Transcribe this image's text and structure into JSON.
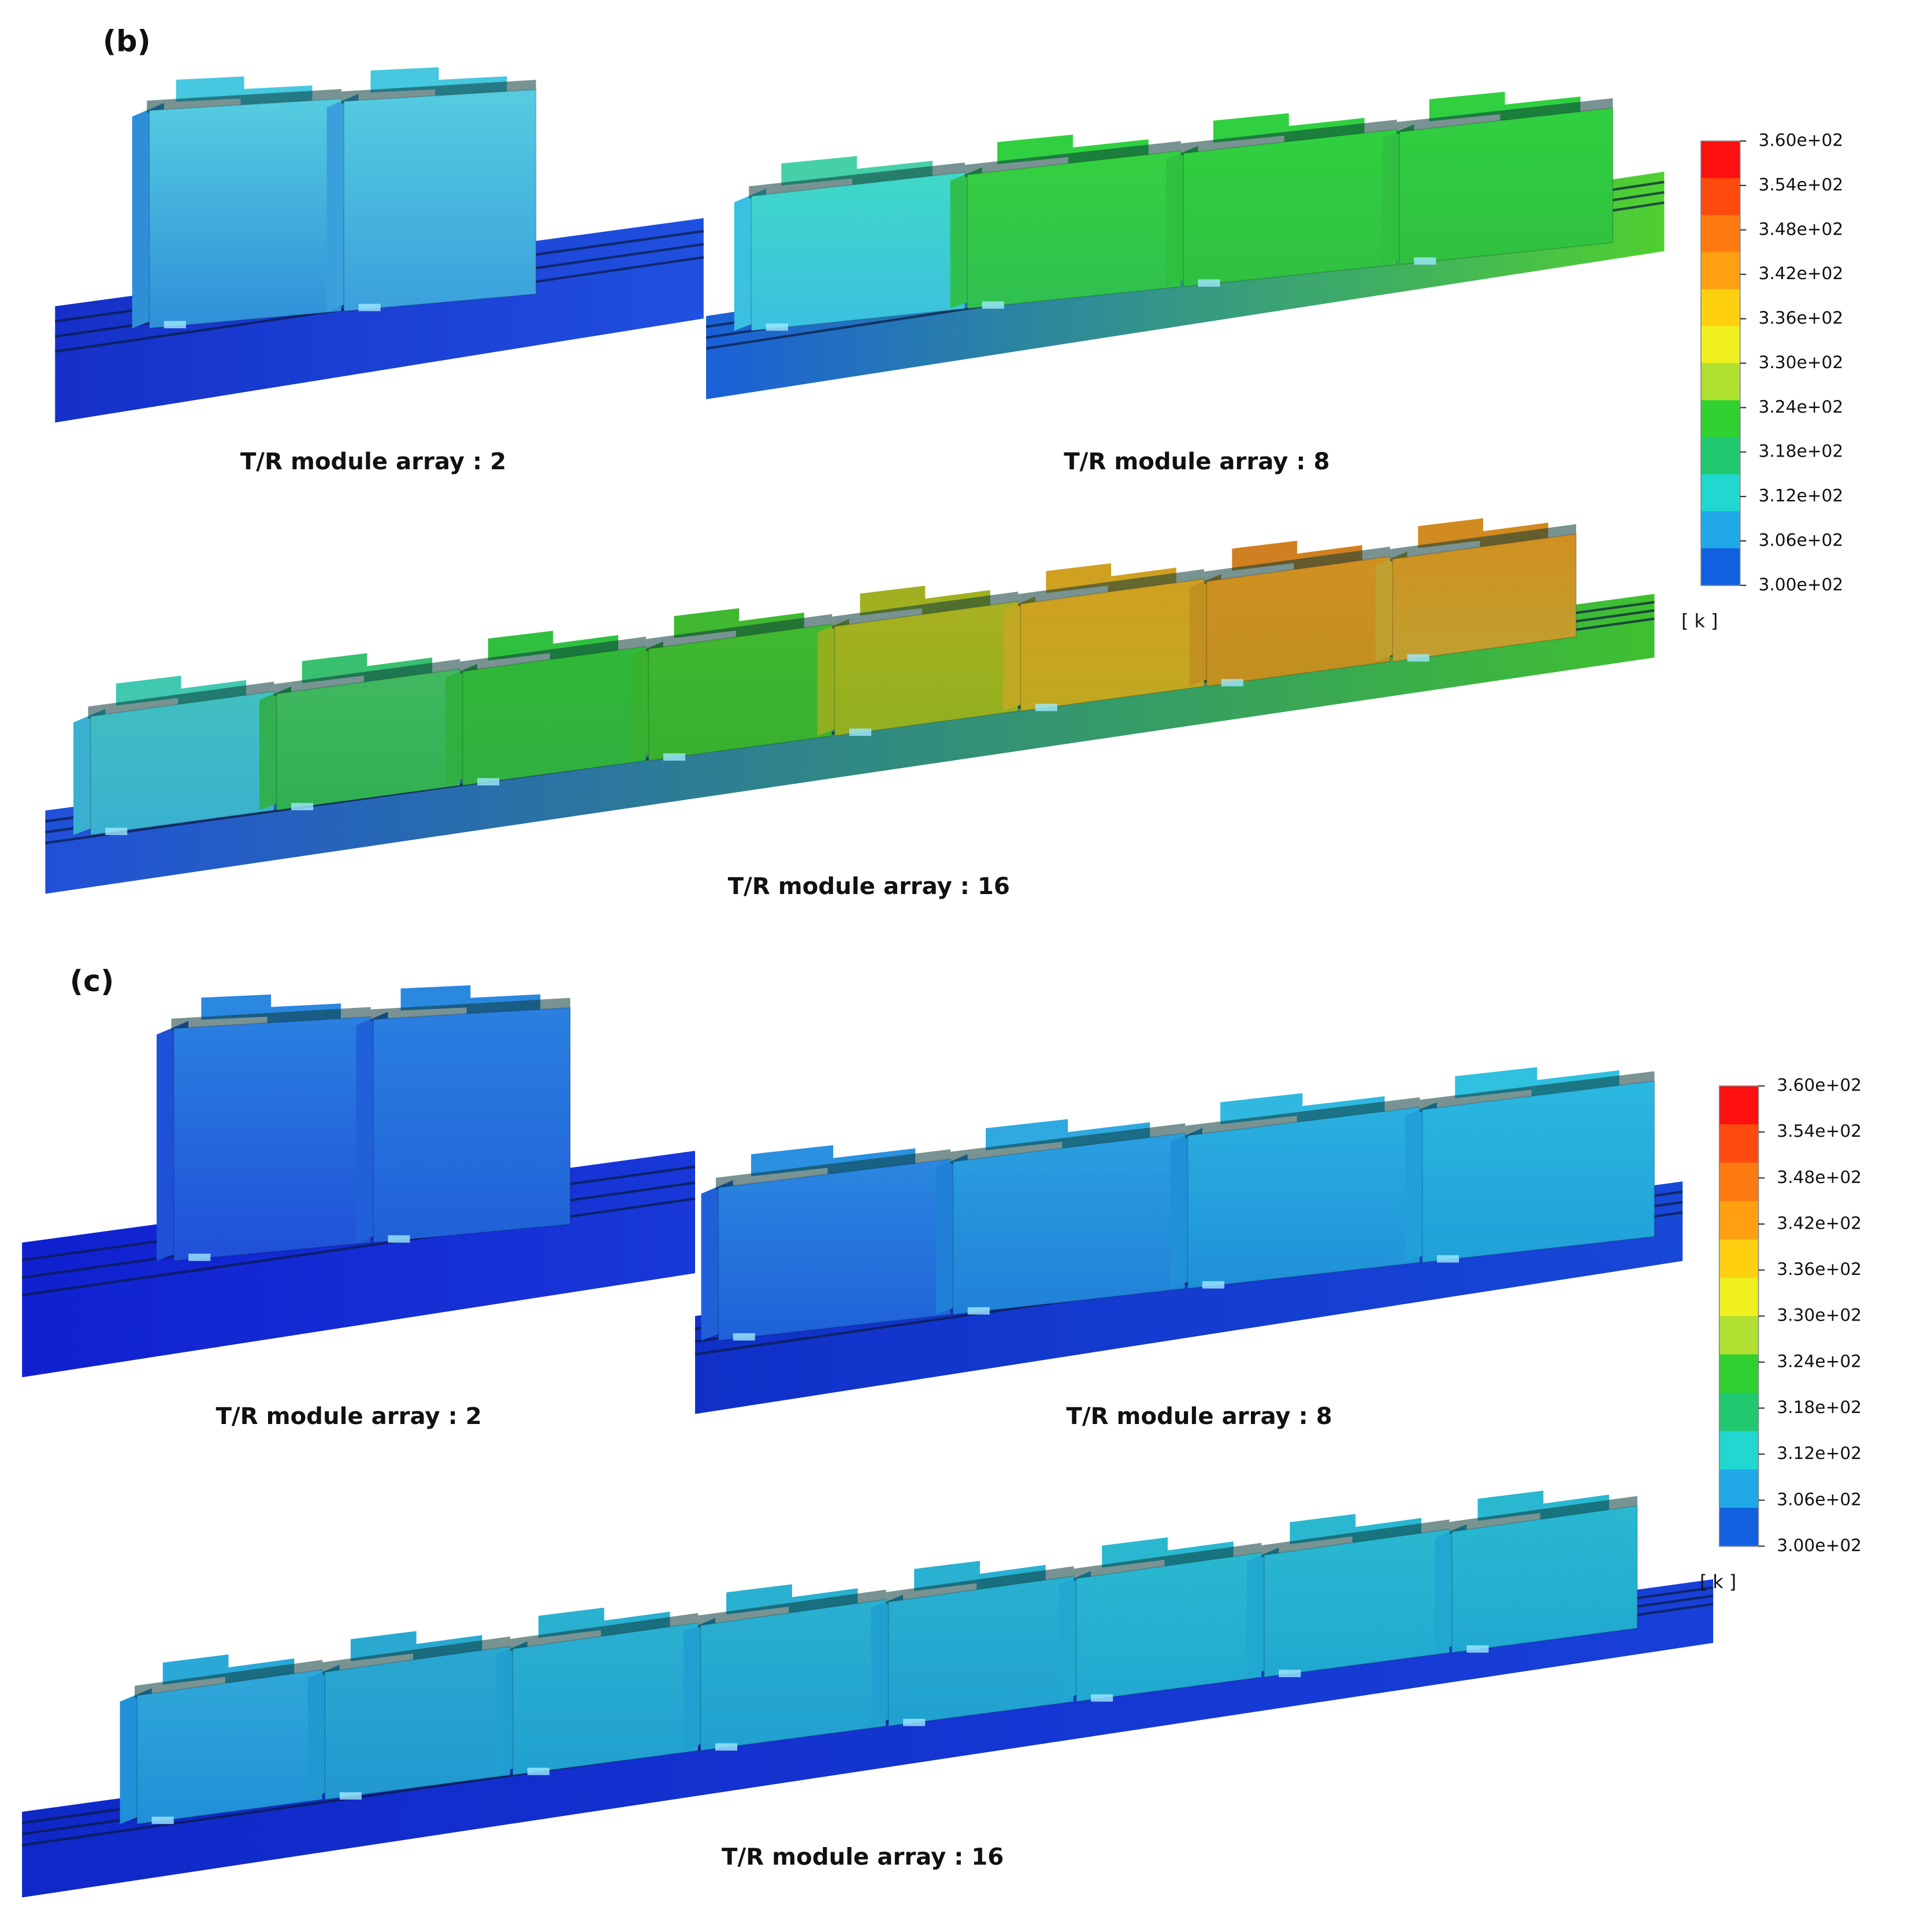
{
  "panels": [
    {
      "label": "(b)",
      "views": [
        {
          "caption": "T/R module array : 2"
        },
        {
          "caption": "T/R module array : 8"
        },
        {
          "caption": "T/R module array : 16"
        }
      ],
      "colorbar": {
        "ticks": [
          "3.60e+02",
          "3.54e+02",
          "3.48e+02",
          "3.42e+02",
          "3.36e+02",
          "3.30e+02",
          "3.24e+02",
          "3.18e+02",
          "3.12e+02",
          "3.06e+02",
          "3.00e+02"
        ],
        "unit": "[ k ]"
      }
    },
    {
      "label": "(c)",
      "views": [
        {
          "caption": "T/R module array : 2"
        },
        {
          "caption": "T/R module array : 8"
        },
        {
          "caption": "T/R module array : 16"
        }
      ],
      "colorbar": {
        "ticks": [
          "3.60e+02",
          "3.54e+02",
          "3.48e+02",
          "3.42e+02",
          "3.36e+02",
          "3.30e+02",
          "3.24e+02",
          "3.18e+02",
          "3.12e+02",
          "3.06e+02",
          "3.00e+02"
        ],
        "unit": "[ k ]"
      }
    }
  ]
}
